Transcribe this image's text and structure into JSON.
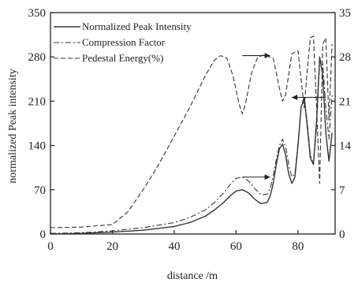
{
  "chart_data": {
    "type": "line",
    "xlabel": "distance /m",
    "ylabel": "normalized Peak intensity",
    "xlim": [
      0,
      92
    ],
    "ylim": [
      0,
      350
    ],
    "y2lim": [
      0,
      35
    ],
    "x_ticks": [
      "0",
      "20",
      "40",
      "60",
      "80"
    ],
    "y_ticks": [
      "0",
      "70",
      "140",
      "210",
      "280",
      "350"
    ],
    "y2_ticks": [
      "0",
      "7",
      "14",
      "21",
      "28",
      "35"
    ],
    "grid": false,
    "legend_position": "top-left",
    "series": [
      {
        "name": "Normalized Peak Intensity",
        "axis": "left",
        "style": "solid",
        "x": [
          0,
          10,
          20,
          30,
          40,
          45,
          50,
          53,
          56,
          58,
          60,
          62,
          64,
          66,
          68,
          70,
          71,
          72,
          73,
          74,
          75,
          76,
          77,
          78,
          79,
          80,
          81,
          82,
          83,
          84,
          85,
          86,
          87,
          88,
          89,
          90,
          91
        ],
        "y": [
          0,
          1,
          3,
          6,
          12,
          18,
          28,
          38,
          50,
          60,
          68,
          70,
          65,
          55,
          48,
          50,
          60,
          80,
          110,
          135,
          142,
          125,
          95,
          80,
          90,
          140,
          200,
          215,
          170,
          120,
          110,
          180,
          280,
          250,
          160,
          115,
          160
        ]
      },
      {
        "name": "Compression Factor",
        "axis": "right",
        "style": "dash-dot",
        "x": [
          0,
          10,
          20,
          30,
          40,
          45,
          50,
          53,
          56,
          58,
          60,
          62,
          64,
          66,
          68,
          70,
          71,
          72,
          73,
          74,
          75,
          76,
          77,
          78,
          79,
          80,
          81,
          82,
          83,
          84,
          85,
          86,
          87,
          88,
          89,
          90,
          91
        ],
        "y": [
          0.1,
          0.2,
          0.5,
          1.0,
          1.8,
          2.6,
          3.8,
          5.0,
          6.5,
          7.8,
          8.8,
          9.0,
          8.4,
          7.2,
          6.2,
          6.3,
          7.2,
          9.2,
          11.8,
          14.0,
          15.0,
          13.8,
          11.0,
          9.0,
          9.5,
          14.2,
          20.0,
          21.8,
          17.5,
          12.5,
          11.0,
          17.0,
          27.5,
          27.0,
          20.0,
          15.0,
          22.0
        ]
      },
      {
        "name": "Pedestal Energy(%)",
        "axis": "right",
        "style": "dashed",
        "x": [
          0,
          10,
          20,
          25,
          30,
          35,
          40,
          45,
          50,
          53,
          55,
          57,
          59,
          61,
          62,
          63,
          65,
          67,
          69,
          72,
          74,
          75,
          76,
          78,
          80,
          81,
          82,
          83,
          84,
          85,
          86,
          87,
          88,
          89,
          90,
          91
        ],
        "y": [
          1.0,
          1.1,
          1.5,
          3.5,
          7.0,
          11.0,
          15.5,
          20.0,
          25.0,
          27.5,
          28.2,
          27.8,
          25.0,
          20.5,
          19.0,
          20.5,
          25.5,
          28.0,
          28.3,
          27.8,
          23.0,
          21.0,
          22.0,
          28.5,
          29.0,
          24.5,
          20.0,
          26.0,
          31.0,
          31.3,
          20.0,
          8.0,
          30.0,
          31.0,
          18.0,
          30.0
        ]
      }
    ],
    "annotations": [
      {
        "type": "arrow",
        "direction": "right",
        "target_axis": "right",
        "x_from": 62,
        "x_to": 71,
        "y": 28.2
      },
      {
        "type": "arrow",
        "direction": "right",
        "target_axis": "right",
        "x_from": 62,
        "x_to": 71,
        "y": 9.0
      },
      {
        "type": "arrow",
        "direction": "left",
        "target_axis": "left",
        "x_from": 89,
        "x_to": 78,
        "y": 216
      }
    ]
  }
}
